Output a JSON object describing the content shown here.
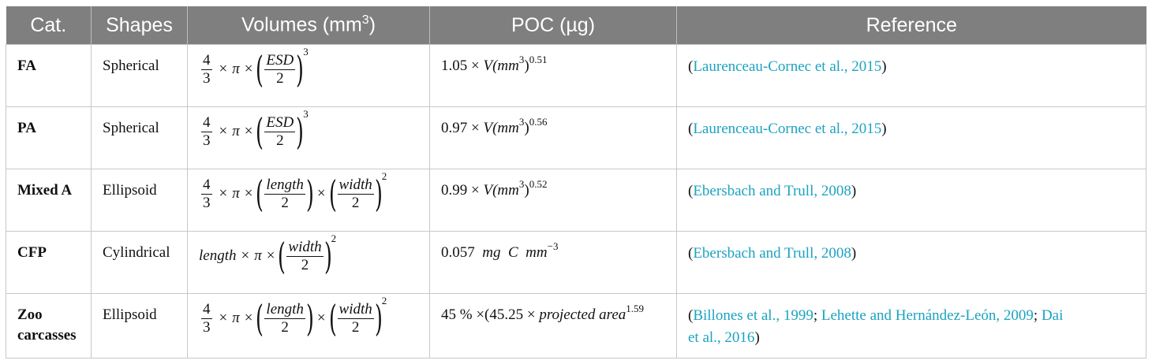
{
  "headers": [
    "Cat.",
    "Shapes",
    "Volumes (mm",
    "POC (µg)",
    "Reference"
  ],
  "volume_header_sup": "3",
  "volume_header_close": ")",
  "rows": [
    {
      "cat": "FA",
      "shape": "Spherical",
      "volume": {
        "coef_num": "4",
        "coef_den": "3",
        "pi": "π",
        "times": "×",
        "var": "ESD",
        "two": "2",
        "exp": "3"
      },
      "poc": {
        "coef": "1.05",
        "expr": "V(mm",
        "mm_sup": "3",
        "close": ")",
        "exp": "0.51"
      },
      "refs": [
        "Laurenceau-Cornec et al., 2015"
      ]
    },
    {
      "cat": "PA",
      "shape": "Spherical",
      "volume": {
        "coef_num": "4",
        "coef_den": "3",
        "pi": "π",
        "times": "×",
        "var": "ESD",
        "two": "2",
        "exp": "3"
      },
      "poc": {
        "coef": "0.97",
        "expr": "V(mm",
        "mm_sup": "3",
        "close": ")",
        "exp": "0.56"
      },
      "refs": [
        "Laurenceau-Cornec et al., 2015"
      ]
    },
    {
      "cat": "Mixed A",
      "shape": "Ellipsoid",
      "volume": {
        "coef_num": "4",
        "coef_den": "3",
        "pi": "π",
        "times": "×",
        "var1": "length",
        "var2": "width",
        "two": "2",
        "exp": "2"
      },
      "poc": {
        "coef": "0.99",
        "expr": "V(mm",
        "mm_sup": "3",
        "close": ")",
        "exp": "0.52"
      },
      "refs": [
        "Ebersbach and Trull, 2008"
      ]
    },
    {
      "cat": "CFP",
      "shape": "Cylindrical",
      "volume": {
        "lead": "length",
        "pi": "π",
        "times": "×",
        "var": "width",
        "two": "2",
        "exp": "2"
      },
      "poc": {
        "coef": "0.057",
        "unit1": "mg",
        "unit2": "C",
        "unit3": "mm",
        "exp": "−3"
      },
      "refs": [
        "Ebersbach and Trull, 2008"
      ]
    },
    {
      "cat_line1": "Zoo",
      "cat_line2": "carcasses",
      "shape": "Ellipsoid",
      "volume": {
        "coef_num": "4",
        "coef_den": "3",
        "pi": "π",
        "times": "×",
        "var1": "length",
        "var2": "width",
        "two": "2",
        "exp": "2"
      },
      "poc": {
        "pct": "45 % ×(45.25 ×",
        "term": "projected  area",
        "exp": "1.59"
      },
      "refs": [
        "Billones et al., 1999",
        "Lehette and Hernández-León, 2009",
        "Dai et al., 2016"
      ],
      "ref_line1": [
        "Billones et al., 1999",
        "Lehette and Hernández-León, 2009",
        "Dai"
      ],
      "ref_line2": "et al., 2016"
    }
  ]
}
